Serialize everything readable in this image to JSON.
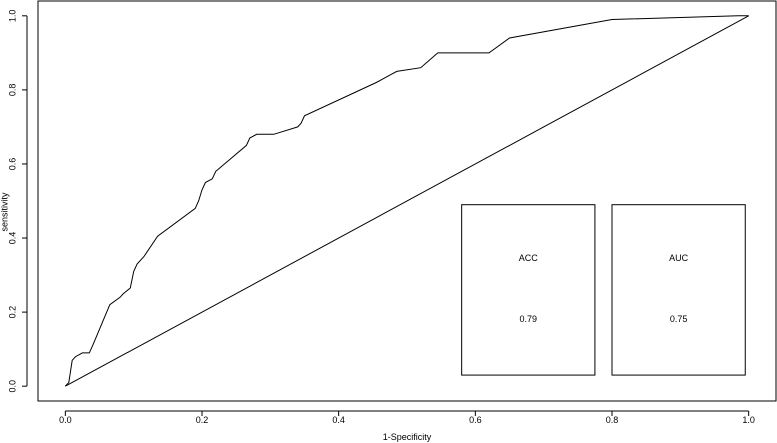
{
  "chart_data": {
    "type": "line",
    "title": "",
    "xlabel": "1-Specificity",
    "ylabel": "sensitivity",
    "xlim": [
      -0.04,
      1.04
    ],
    "ylim": [
      -0.04,
      1.04
    ],
    "x_ticks": [
      0.0,
      0.2,
      0.4,
      0.6,
      0.8,
      1.0
    ],
    "x_tick_labels": [
      "0.0",
      "0.2",
      "0.4",
      "0.6",
      "0.8",
      "1.0"
    ],
    "y_ticks": [
      0.0,
      0.2,
      0.4,
      0.6,
      0.8,
      1.0
    ],
    "y_tick_labels": [
      "0.0",
      "0.2",
      "0.4",
      "0.6",
      "0.8",
      "1.0"
    ],
    "grid": false,
    "series": [
      {
        "x": [
          0.0,
          0.005,
          0.01,
          0.015,
          0.025,
          0.035,
          0.04,
          0.065,
          0.08,
          0.085,
          0.095,
          0.1,
          0.105,
          0.115,
          0.135,
          0.19,
          0.195,
          0.2,
          0.205,
          0.215,
          0.22,
          0.265,
          0.27,
          0.28,
          0.305,
          0.34,
          0.345,
          0.35,
          0.455,
          0.465,
          0.475,
          0.485,
          0.52,
          0.545,
          0.62,
          0.65,
          0.8,
          0.985,
          1.0
        ],
        "y": [
          0.0,
          0.01,
          0.07,
          0.08,
          0.09,
          0.09,
          0.11,
          0.22,
          0.24,
          0.25,
          0.265,
          0.31,
          0.33,
          0.35,
          0.405,
          0.48,
          0.5,
          0.53,
          0.55,
          0.56,
          0.58,
          0.65,
          0.67,
          0.68,
          0.68,
          0.7,
          0.71,
          0.73,
          0.82,
          0.83,
          0.84,
          0.85,
          0.86,
          0.9,
          0.9,
          0.94,
          0.99,
          1.0,
          1.0
        ]
      },
      {
        "x": [
          0.0,
          1.0
        ],
        "y": [
          0.0,
          1.0
        ]
      }
    ],
    "annotations": [
      {
        "label": "ACC",
        "value": "0.79"
      },
      {
        "label": "AUC",
        "value": "0.75"
      }
    ]
  }
}
